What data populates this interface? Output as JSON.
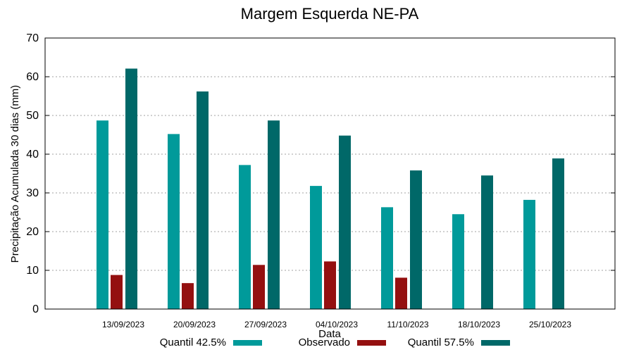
{
  "chart_data": {
    "type": "bar",
    "title": "Margem Esquerda NE-PA",
    "xlabel": "Data",
    "ylabel": "Precipitação Acumulada 30 dias (mm)",
    "ylim": [
      0,
      70
    ],
    "yticks": [
      0,
      10,
      20,
      30,
      40,
      50,
      60,
      70
    ],
    "grid": true,
    "legend_position": "bottom",
    "categories": [
      "13/09/2023",
      "20/09/2023",
      "27/09/2023",
      "04/10/2023",
      "11/10/2023",
      "18/10/2023",
      "25/10/2023"
    ],
    "series": [
      {
        "name": "Quantil 42.5%",
        "color": "#009a9a",
        "values": [
          48.7,
          45.2,
          37.2,
          31.8,
          26.3,
          24.5,
          28.2
        ]
      },
      {
        "name": "Observado",
        "color": "#941010",
        "values": [
          8.8,
          6.7,
          11.4,
          12.3,
          8.1,
          null,
          null
        ]
      },
      {
        "name": "Quantil 57.5%",
        "color": "#006868",
        "values": [
          62.1,
          56.2,
          48.7,
          44.8,
          35.8,
          34.5,
          38.9
        ]
      }
    ]
  }
}
